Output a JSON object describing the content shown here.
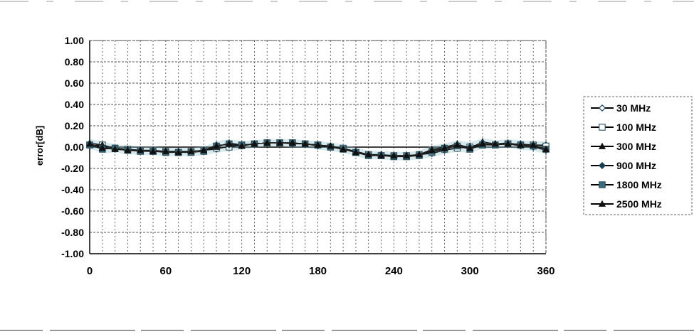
{
  "chart_data": {
    "type": "line",
    "title": "",
    "xlabel": "",
    "ylabel": "error[dB]",
    "xlim": [
      0,
      360
    ],
    "ylim": [
      -1.0,
      1.0
    ],
    "x_ticks": [
      0,
      60,
      120,
      180,
      240,
      300,
      360
    ],
    "x_tick_labels": [
      "0",
      "60",
      "120",
      "180",
      "240",
      "300",
      "360"
    ],
    "y_ticks": [
      1.0,
      0.8,
      0.6,
      0.4,
      0.2,
      0.0,
      -0.2,
      -0.4,
      -0.6,
      -0.8,
      -1.0
    ],
    "y_tick_labels": [
      "1.00",
      "0.80",
      "0.60",
      "0.40",
      "0.20",
      "0.00",
      "-0.20",
      "-0.40",
      "-0.60",
      "-0.80",
      "-1.00"
    ],
    "grid": true,
    "legend_position": "right",
    "x": [
      0,
      10,
      20,
      30,
      40,
      50,
      60,
      70,
      80,
      90,
      100,
      110,
      120,
      130,
      140,
      150,
      160,
      170,
      180,
      190,
      200,
      210,
      220,
      230,
      240,
      250,
      260,
      270,
      280,
      290,
      300,
      310,
      320,
      330,
      340,
      350,
      360
    ],
    "series": [
      {
        "name": "30 MHz",
        "marker": "diamond-open",
        "color": "#000000",
        "values": [
          0.02,
          0.01,
          -0.01,
          -0.02,
          -0.03,
          -0.03,
          -0.04,
          -0.04,
          -0.04,
          -0.03,
          -0.02,
          0.01,
          0.02,
          0.03,
          0.04,
          0.04,
          0.04,
          0.03,
          0.02,
          0.01,
          -0.01,
          -0.04,
          -0.07,
          -0.07,
          -0.08,
          -0.08,
          -0.07,
          -0.06,
          -0.03,
          -0.01,
          0.01,
          0.02,
          0.03,
          0.03,
          0.03,
          0.02,
          0.02
        ]
      },
      {
        "name": "100 MHz",
        "marker": "square-open",
        "color": "#000000",
        "values": [
          0.02,
          0.02,
          -0.01,
          -0.02,
          -0.03,
          -0.04,
          -0.04,
          -0.05,
          -0.04,
          -0.03,
          -0.01,
          0.0,
          0.02,
          0.03,
          0.04,
          0.04,
          0.04,
          0.03,
          0.02,
          0.0,
          -0.01,
          -0.05,
          -0.07,
          -0.08,
          -0.08,
          -0.08,
          -0.07,
          -0.05,
          -0.02,
          -0.01,
          0.0,
          0.02,
          0.02,
          0.03,
          0.02,
          0.02,
          0.01
        ]
      },
      {
        "name": "300 MHz",
        "marker": "triangle",
        "color": "#000000",
        "values": [
          0.04,
          0.02,
          -0.01,
          -0.02,
          -0.03,
          -0.03,
          -0.04,
          -0.04,
          -0.04,
          -0.03,
          0.0,
          0.04,
          0.02,
          0.03,
          0.04,
          0.04,
          0.04,
          0.03,
          0.02,
          0.01,
          -0.02,
          -0.04,
          -0.07,
          -0.07,
          -0.08,
          -0.08,
          -0.07,
          -0.02,
          0.0,
          0.03,
          -0.01,
          0.05,
          0.03,
          0.04,
          0.02,
          0.01,
          -0.02
        ]
      },
      {
        "name": "900 MHz",
        "marker": "diamond",
        "color": "#000000",
        "values": [
          0.03,
          0.0,
          -0.02,
          -0.03,
          -0.03,
          -0.04,
          -0.04,
          -0.05,
          -0.04,
          -0.03,
          0.02,
          0.02,
          0.01,
          0.03,
          0.04,
          0.04,
          0.03,
          0.03,
          0.01,
          0.0,
          -0.02,
          -0.05,
          -0.08,
          -0.08,
          -0.09,
          -0.08,
          -0.08,
          -0.03,
          -0.02,
          0.02,
          0.0,
          0.04,
          0.02,
          0.03,
          0.01,
          0.0,
          -0.03
        ]
      },
      {
        "name": "1800 MHz",
        "marker": "square",
        "color": "#000000",
        "values": [
          0.02,
          -0.02,
          -0.01,
          -0.03,
          -0.04,
          -0.04,
          -0.05,
          -0.05,
          -0.05,
          -0.04,
          0.01,
          0.03,
          0.02,
          0.03,
          0.04,
          0.04,
          0.04,
          0.03,
          0.02,
          0.0,
          -0.02,
          -0.05,
          -0.08,
          -0.08,
          -0.09,
          -0.09,
          -0.08,
          -0.04,
          -0.01,
          0.01,
          -0.02,
          0.02,
          0.02,
          0.03,
          0.02,
          0.01,
          -0.02
        ]
      },
      {
        "name": "2500 MHz",
        "marker": "triangle",
        "color": "#000000",
        "values": [
          0.03,
          -0.01,
          -0.02,
          -0.03,
          -0.03,
          -0.04,
          -0.04,
          -0.05,
          -0.04,
          -0.03,
          0.01,
          0.03,
          0.01,
          0.03,
          0.04,
          0.04,
          0.04,
          0.03,
          0.02,
          0.01,
          -0.02,
          -0.05,
          -0.07,
          -0.08,
          -0.08,
          -0.08,
          -0.07,
          -0.03,
          -0.01,
          0.02,
          -0.01,
          0.03,
          0.03,
          0.03,
          0.02,
          0.02,
          -0.02
        ]
      }
    ]
  }
}
